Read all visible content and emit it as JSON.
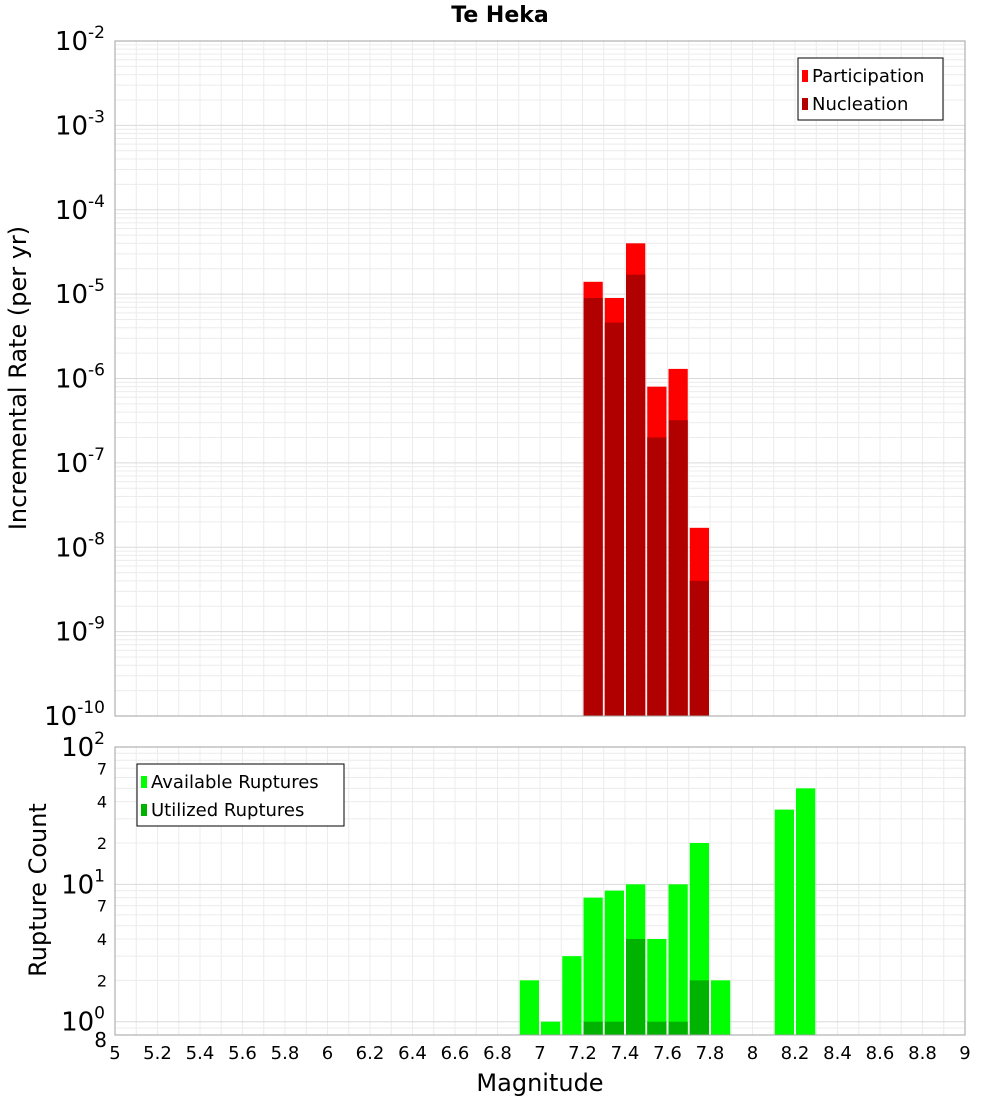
{
  "chart_data": {
    "title": "Te Heka",
    "xlabel": "Magnitude",
    "xlim": [
      5,
      9
    ],
    "x_ticks": [
      "5",
      "5.2",
      "5.4",
      "5.6",
      "5.8",
      "6",
      "6.2",
      "6.4",
      "6.6",
      "6.8",
      "7",
      "7.2",
      "7.4",
      "7.6",
      "7.8",
      "8",
      "8.2",
      "8.4",
      "8.6",
      "8.8",
      "9"
    ],
    "bin_width": 0.1,
    "panels": [
      {
        "type": "bar",
        "ylabel": "Incremental Rate (per yr)",
        "y_scale": "log",
        "ylim": [
          1e-10,
          0.01
        ],
        "y_ticks": [
          {
            "value": 1e-10,
            "base": "10",
            "exp": "-10"
          },
          {
            "value": 1e-09,
            "base": "10",
            "exp": "-9"
          },
          {
            "value": 1e-08,
            "base": "10",
            "exp": "-8"
          },
          {
            "value": 1e-07,
            "base": "10",
            "exp": "-7"
          },
          {
            "value": 1e-06,
            "base": "10",
            "exp": "-6"
          },
          {
            "value": 1e-05,
            "base": "10",
            "exp": "-5"
          },
          {
            "value": 0.0001,
            "base": "10",
            "exp": "-4"
          },
          {
            "value": 0.001,
            "base": "10",
            "exp": "-3"
          },
          {
            "value": 0.01,
            "base": "10",
            "exp": "-2"
          }
        ],
        "legend_position": "top-right",
        "series": [
          {
            "name": "Participation",
            "color": "#ff0000",
            "x": [
              7.25,
              7.35,
              7.45,
              7.55,
              7.65,
              7.75
            ],
            "values": [
              1.4e-05,
              9e-06,
              4e-05,
              8e-07,
              1.3e-06,
              1.7e-08
            ]
          },
          {
            "name": "Nucleation",
            "color": "#b00000",
            "x": [
              7.25,
              7.35,
              7.45,
              7.55,
              7.65,
              7.75
            ],
            "values": [
              9e-06,
              4.6e-06,
              1.7e-05,
              2e-07,
              3.2e-07,
              4e-09
            ]
          }
        ]
      },
      {
        "type": "bar",
        "ylabel": "Rupture Count",
        "y_scale": "log",
        "ylim": [
          0.8,
          100
        ],
        "y_ticks": [
          {
            "value": 1,
            "base": "10",
            "exp": "0"
          },
          {
            "value": 10,
            "base": "10",
            "exp": "1"
          },
          {
            "value": 100,
            "base": "10",
            "exp": "2"
          }
        ],
        "y_minor_labels": [
          {
            "value": 0.8,
            "label": "8"
          },
          {
            "value": 2,
            "label": "2"
          },
          {
            "value": 4,
            "label": "4"
          },
          {
            "value": 7,
            "label": "7"
          },
          {
            "value": 20,
            "label": "2"
          },
          {
            "value": 40,
            "label": "4"
          },
          {
            "value": 70,
            "label": "7"
          }
        ],
        "legend_position": "top-left",
        "series": [
          {
            "name": "Available Ruptures",
            "color": "#00ff00",
            "x": [
              6.95,
              7.05,
              7.15,
              7.25,
              7.35,
              7.45,
              7.55,
              7.65,
              7.75,
              7.85,
              8.15,
              8.25
            ],
            "values": [
              2,
              1,
              3,
              8,
              9,
              10,
              4,
              10,
              20,
              2,
              35,
              50
            ]
          },
          {
            "name": "Utilized Ruptures",
            "color": "#00b300",
            "x": [
              7.25,
              7.35,
              7.45,
              7.55,
              7.65,
              7.75
            ],
            "values": [
              1,
              1,
              4,
              1,
              1,
              2
            ]
          }
        ]
      }
    ]
  }
}
